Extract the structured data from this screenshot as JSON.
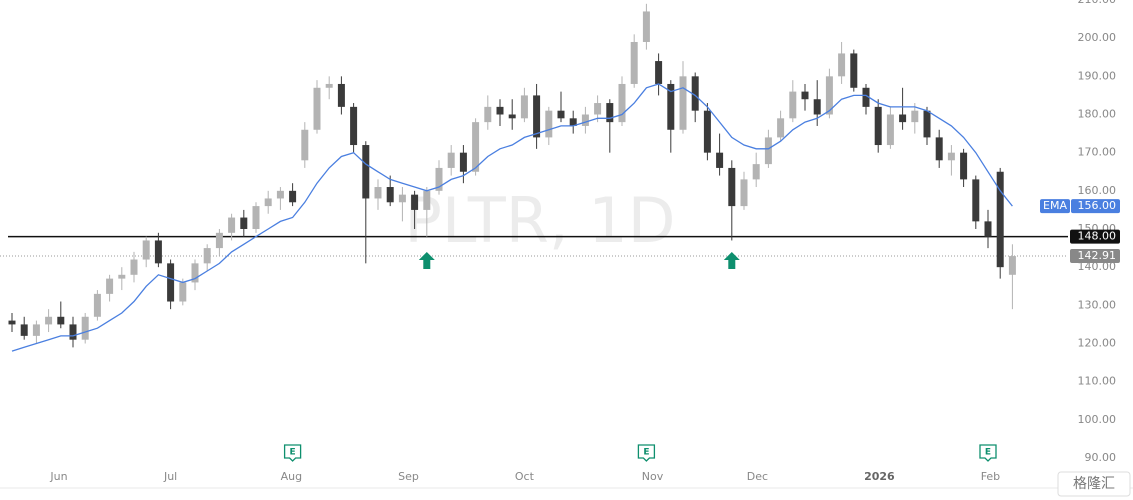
{
  "chart_data": {
    "type": "candlestick",
    "watermark": "PLTR, 1D",
    "up_color": "#b3b3b3",
    "down_color": "#3a3a3a",
    "candles": [
      [
        126,
        128,
        123,
        125
      ],
      [
        125,
        127,
        121,
        122
      ],
      [
        122,
        126,
        120,
        125
      ],
      [
        125,
        129,
        123,
        127
      ],
      [
        127,
        131,
        124,
        125
      ],
      [
        125,
        127,
        119,
        121
      ],
      [
        121,
        128,
        120,
        127
      ],
      [
        127,
        134,
        126,
        133
      ],
      [
        133,
        138,
        131,
        137
      ],
      [
        137,
        140,
        134,
        138
      ],
      [
        138,
        144,
        136,
        142
      ],
      [
        142,
        148,
        140,
        147
      ],
      [
        147,
        149,
        140,
        141
      ],
      [
        141,
        142,
        129,
        131
      ],
      [
        131,
        137,
        130,
        136
      ],
      [
        136,
        142,
        134,
        141
      ],
      [
        141,
        146,
        139,
        145
      ],
      [
        145,
        150,
        143,
        149
      ],
      [
        149,
        154,
        147,
        153
      ],
      [
        153,
        155,
        148,
        150
      ],
      [
        150,
        157,
        149,
        156
      ],
      [
        156,
        160,
        154,
        158
      ],
      [
        158,
        161,
        155,
        160
      ],
      [
        160,
        162,
        156,
        157
      ],
      [
        168,
        178,
        166,
        176
      ],
      [
        176,
        189,
        175,
        187
      ],
      [
        187,
        190,
        184,
        188
      ],
      [
        188,
        190,
        180,
        182
      ],
      [
        182,
        183,
        170,
        172
      ],
      [
        172,
        173,
        141,
        158
      ],
      [
        158,
        163,
        155,
        161
      ],
      [
        161,
        164,
        156,
        157
      ],
      [
        157,
        161,
        152,
        159
      ],
      [
        159,
        160,
        150,
        155
      ],
      [
        155,
        161,
        148,
        160
      ],
      [
        160,
        168,
        159,
        166
      ],
      [
        166,
        172,
        164,
        170
      ],
      [
        170,
        172,
        162,
        165
      ],
      [
        165,
        179,
        164,
        178
      ],
      [
        178,
        185,
        176,
        182
      ],
      [
        182,
        184,
        177,
        180
      ],
      [
        180,
        184,
        176,
        179
      ],
      [
        179,
        187,
        178,
        185
      ],
      [
        185,
        188,
        171,
        174
      ],
      [
        174,
        182,
        172,
        181
      ],
      [
        181,
        186,
        178,
        179
      ],
      [
        179,
        181,
        175,
        177
      ],
      [
        177,
        182,
        175,
        180
      ],
      [
        180,
        185,
        178,
        183
      ],
      [
        183,
        184,
        170,
        178
      ],
      [
        178,
        190,
        177,
        188
      ],
      [
        188,
        201,
        187,
        199
      ],
      [
        199,
        209,
        197,
        207
      ],
      [
        194,
        196,
        185,
        188
      ],
      [
        188,
        189,
        170,
        176
      ],
      [
        176,
        194,
        175,
        190
      ],
      [
        190,
        191,
        178,
        181
      ],
      [
        181,
        183,
        168,
        170
      ],
      [
        170,
        175,
        164,
        166
      ],
      [
        166,
        168,
        147,
        156
      ],
      [
        156,
        165,
        155,
        163
      ],
      [
        163,
        170,
        161,
        167
      ],
      [
        167,
        176,
        166,
        174
      ],
      [
        174,
        181,
        173,
        179
      ],
      [
        179,
        189,
        178,
        186
      ],
      [
        186,
        188,
        181,
        184
      ],
      [
        184,
        189,
        177,
        180
      ],
      [
        180,
        192,
        179,
        190
      ],
      [
        190,
        199,
        188,
        196
      ],
      [
        196,
        197,
        186,
        187
      ],
      [
        187,
        188,
        180,
        182
      ],
      [
        182,
        184,
        170,
        172
      ],
      [
        172,
        182,
        171,
        180
      ],
      [
        180,
        187,
        176,
        178
      ],
      [
        178,
        183,
        175,
        181
      ],
      [
        181,
        182,
        172,
        174
      ],
      [
        174,
        176,
        166,
        168
      ],
      [
        168,
        172,
        164,
        170
      ],
      [
        170,
        171,
        161,
        163
      ],
      [
        163,
        164,
        150,
        152
      ],
      [
        152,
        155,
        145,
        148
      ],
      [
        165,
        166,
        137,
        140
      ],
      [
        138,
        146,
        129,
        142.91
      ]
    ],
    "ema": {
      "name": "EMA",
      "color": "#4a7fe0",
      "values": [
        118,
        119,
        120,
        121,
        122,
        122,
        123,
        124,
        126,
        128,
        131,
        135,
        138,
        137,
        136,
        137,
        139,
        141,
        144,
        146,
        148,
        150,
        152,
        153,
        157,
        162,
        166,
        169,
        170,
        167,
        165,
        163,
        162,
        161,
        160,
        161,
        163,
        164,
        166,
        169,
        171,
        172,
        174,
        175,
        176,
        177,
        177,
        178,
        179,
        179,
        180,
        183,
        187,
        188,
        186,
        187,
        185,
        182,
        178,
        174,
        172,
        171,
        171,
        173,
        176,
        178,
        179,
        181,
        184,
        185,
        185,
        183,
        182,
        182,
        182,
        181,
        179,
        177,
        174,
        170,
        165,
        160,
        156
      ],
      "value_label": {
        "value": 156,
        "label": "156.00"
      }
    },
    "support_line": {
      "value": 148,
      "label": "148.00"
    },
    "last_price": {
      "value": 142.91,
      "label": "142.91"
    },
    "signals": [
      34,
      59
    ],
    "earnings": [
      {
        "index": 23,
        "label": "E"
      },
      {
        "index": 52,
        "label": "E"
      },
      {
        "index": 80,
        "label": "E"
      }
    ],
    "xlim": [
      -1,
      90
    ],
    "xticks": [
      {
        "value": 3.85,
        "label": "Jun"
      },
      {
        "value": 13,
        "label": "Jul"
      },
      {
        "value": 22.9,
        "label": "Aug"
      },
      {
        "value": 32.5,
        "label": "Sep"
      },
      {
        "value": 42,
        "label": "Oct"
      },
      {
        "value": 52.5,
        "label": "Nov"
      },
      {
        "value": 61.1,
        "label": "Dec"
      },
      {
        "value": 71.1,
        "label": "2026"
      },
      {
        "value": 80.2,
        "label": "Feb"
      }
    ],
    "ylim": [
      90,
      210
    ],
    "yticks": [
      {
        "value": 90,
        "label": "90.00"
      },
      {
        "value": 100,
        "label": "100.00"
      },
      {
        "value": 110,
        "label": "110.00"
      },
      {
        "value": 120,
        "label": "120.00"
      },
      {
        "value": 130,
        "label": "130.00"
      },
      {
        "value": 140,
        "label": "140.00"
      },
      {
        "value": 150,
        "label": "150.00"
      },
      {
        "value": 160,
        "label": "160.00"
      },
      {
        "value": 170,
        "label": "170.00"
      },
      {
        "value": 180,
        "label": "180.00"
      },
      {
        "value": 190,
        "label": "190.00"
      },
      {
        "value": 200,
        "label": "200.00"
      },
      {
        "value": 210,
        "label": "210.00"
      }
    ],
    "logo": "格隆汇"
  }
}
